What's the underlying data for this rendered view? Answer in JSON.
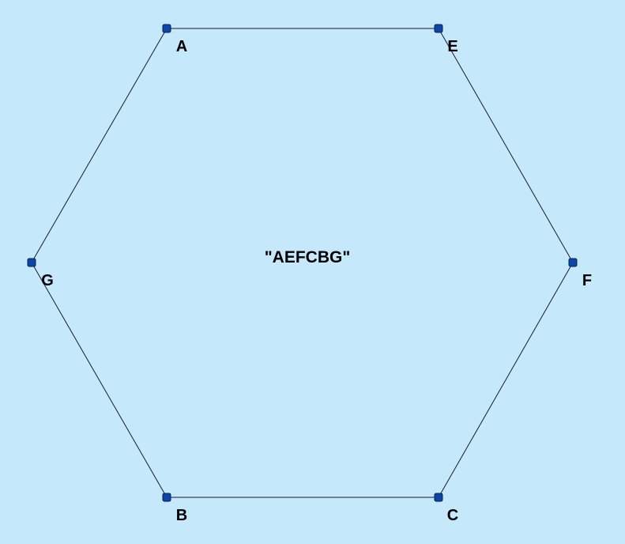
{
  "colors": {
    "background": "#c6e8fb",
    "edge": "#1a1a2e",
    "vertex_fill": "#0b46a8",
    "label": "#000000"
  },
  "polygon": {
    "caption": "\"AEFCBG\"",
    "vertex_order": [
      "A",
      "E",
      "F",
      "C",
      "B",
      "G"
    ],
    "vertices": [
      {
        "id": "A",
        "label": "A"
      },
      {
        "id": "E",
        "label": "E"
      },
      {
        "id": "F",
        "label": "F"
      },
      {
        "id": "C",
        "label": "C"
      },
      {
        "id": "B",
        "label": "B"
      },
      {
        "id": "G",
        "label": "G"
      }
    ]
  }
}
